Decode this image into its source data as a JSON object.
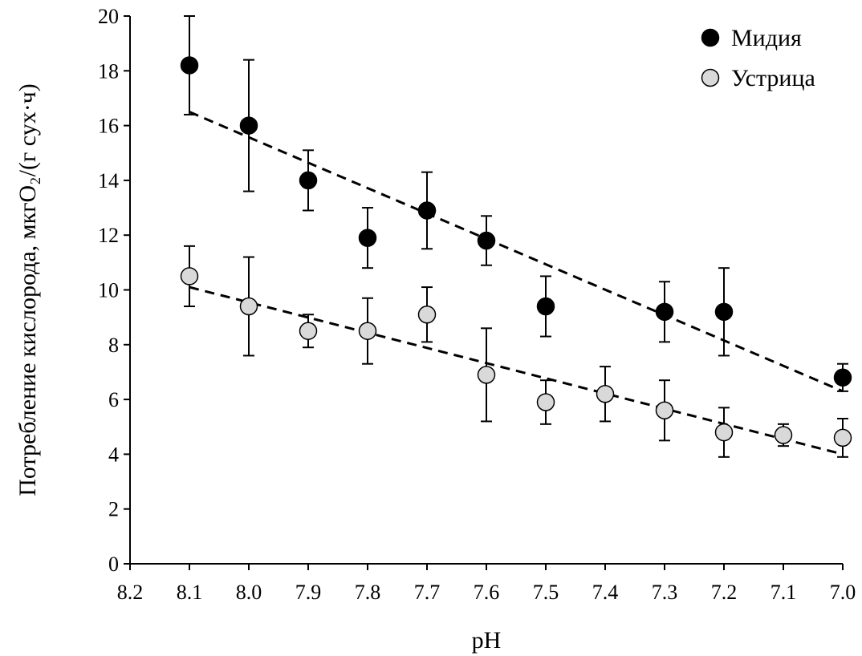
{
  "chart_data": {
    "type": "scatter",
    "title": "",
    "xlabel": "pH",
    "ylabel": "Потребление кислорода, мкгO₂/(г сух·ч)",
    "xlim": [
      8.2,
      7.0
    ],
    "x_reversed": true,
    "ylim": [
      0,
      20
    ],
    "x_ticks": [
      "8.2",
      "8.1",
      "8.0",
      "7.9",
      "7.8",
      "7.7",
      "7.6",
      "7.5",
      "7.4",
      "7.3",
      "7.2",
      "7.1",
      "7.0"
    ],
    "y_ticks": [
      "0",
      "2",
      "4",
      "6",
      "8",
      "10",
      "12",
      "14",
      "16",
      "18",
      "20"
    ],
    "grid": false,
    "legend_position": "top-right",
    "series": [
      {
        "name": "Мидия",
        "marker_color": "#000000",
        "points": [
          {
            "x": 8.1,
            "y": 18.2,
            "err": 1.8
          },
          {
            "x": 8.0,
            "y": 16.0,
            "err": 2.4
          },
          {
            "x": 7.9,
            "y": 14.0,
            "err": 1.1
          },
          {
            "x": 7.8,
            "y": 11.9,
            "err": 1.1
          },
          {
            "x": 7.7,
            "y": 12.9,
            "err": 1.4
          },
          {
            "x": 7.6,
            "y": 11.8,
            "err": 0.9
          },
          {
            "x": 7.5,
            "y": 9.4,
            "err": 1.1
          },
          {
            "x": 7.3,
            "y": 9.2,
            "err": 1.1
          },
          {
            "x": 7.2,
            "y": 9.2,
            "err": 1.6
          },
          {
            "x": 7.0,
            "y": 6.8,
            "err": 0.5
          }
        ],
        "trend": {
          "x": [
            8.1,
            7.0
          ],
          "y": [
            16.5,
            6.3
          ]
        }
      },
      {
        "name": "Устрица",
        "marker_color": "#d9d9d9",
        "points": [
          {
            "x": 8.1,
            "y": 10.5,
            "err": 1.1
          },
          {
            "x": 8.0,
            "y": 9.4,
            "err": 1.8
          },
          {
            "x": 7.9,
            "y": 8.5,
            "err": 0.6
          },
          {
            "x": 7.8,
            "y": 8.5,
            "err": 1.2
          },
          {
            "x": 7.7,
            "y": 9.1,
            "err": 1.0
          },
          {
            "x": 7.6,
            "y": 6.9,
            "err": 1.7
          },
          {
            "x": 7.5,
            "y": 5.9,
            "err": 0.8
          },
          {
            "x": 7.4,
            "y": 6.2,
            "err": 1.0
          },
          {
            "x": 7.3,
            "y": 5.6,
            "err": 1.1
          },
          {
            "x": 7.2,
            "y": 4.8,
            "err": 0.9
          },
          {
            "x": 7.1,
            "y": 4.7,
            "err": 0.4
          },
          {
            "x": 7.0,
            "y": 4.6,
            "err": 0.7
          }
        ],
        "trend": {
          "x": [
            8.1,
            7.0
          ],
          "y": [
            10.1,
            4.0
          ]
        }
      }
    ]
  }
}
